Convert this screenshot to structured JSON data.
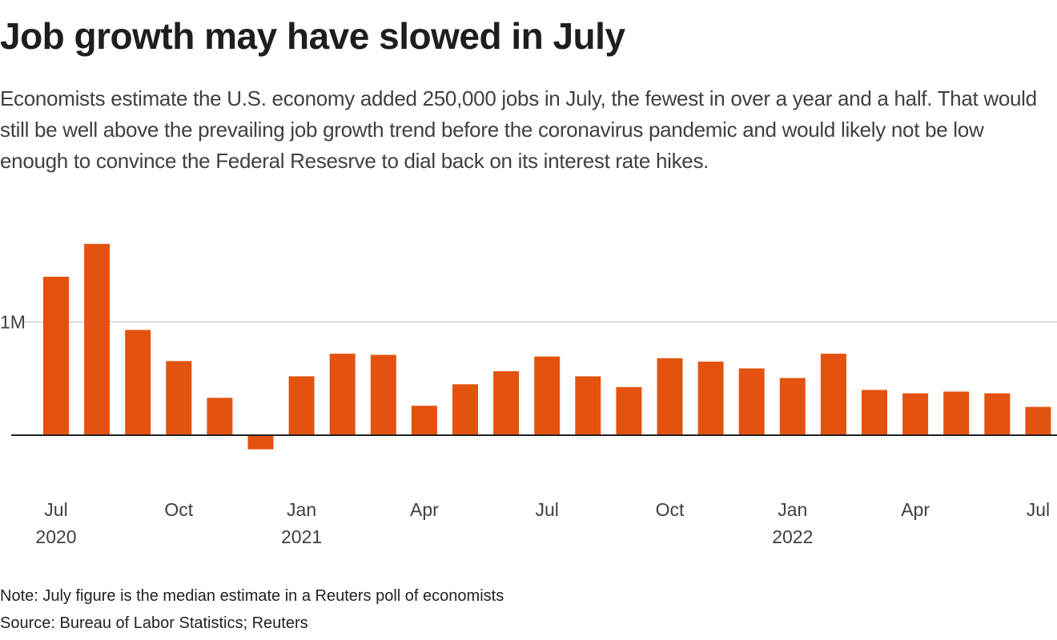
{
  "header": {
    "title": "Job growth may have slowed in July",
    "subtitle": "Economists estimate the U.S. economy added 250,000 jobs in July, the fewest in over a year and a half. That would still be well above the prevailing job growth trend before the coronavirus pandemic and would likely not be low enough to convince the Federal Resesrve to dial back on its interest rate hikes."
  },
  "footer": {
    "note": "Note: July figure is the median estimate in a Reuters poll of economists",
    "source": "Source: Bureau of Labor Statistics; Reuters"
  },
  "chart_data": {
    "type": "bar",
    "title": "Job growth may have slowed in July",
    "xlabel": "",
    "ylabel": "",
    "y_unit": "thousands of jobs",
    "ylim": [
      -200,
      1900
    ],
    "grid": true,
    "bar_color": "#e3530f",
    "y_ticks": [
      {
        "value": 1000,
        "label": "1M"
      }
    ],
    "categories": [
      "Jul 2020",
      "Aug 2020",
      "Sep 2020",
      "Oct 2020",
      "Nov 2020",
      "Dec 2020",
      "Jan 2021",
      "Feb 2021",
      "Mar 2021",
      "Apr 2021",
      "May 2021",
      "Jun 2021",
      "Jul 2021",
      "Aug 2021",
      "Sep 2021",
      "Oct 2021",
      "Nov 2021",
      "Dec 2021",
      "Jan 2022",
      "Feb 2022",
      "Mar 2022",
      "Apr 2022",
      "May 2022",
      "Jun 2022",
      "Jul 2022"
    ],
    "values": [
      1400,
      1690,
      930,
      655,
      330,
      -125,
      520,
      720,
      710,
      260,
      450,
      565,
      695,
      520,
      425,
      680,
      650,
      590,
      505,
      720,
      400,
      370,
      385,
      370,
      250
    ],
    "x_ticks": [
      {
        "index": 0,
        "month": "Jul",
        "year": "2020"
      },
      {
        "index": 3,
        "month": "Oct",
        "year": ""
      },
      {
        "index": 6,
        "month": "Jan",
        "year": "2021"
      },
      {
        "index": 9,
        "month": "Apr",
        "year": ""
      },
      {
        "index": 12,
        "month": "Jul",
        "year": ""
      },
      {
        "index": 15,
        "month": "Oct",
        "year": ""
      },
      {
        "index": 18,
        "month": "Jan",
        "year": "2022"
      },
      {
        "index": 21,
        "month": "Apr",
        "year": ""
      },
      {
        "index": 24,
        "month": "Jul",
        "year": ""
      }
    ]
  }
}
